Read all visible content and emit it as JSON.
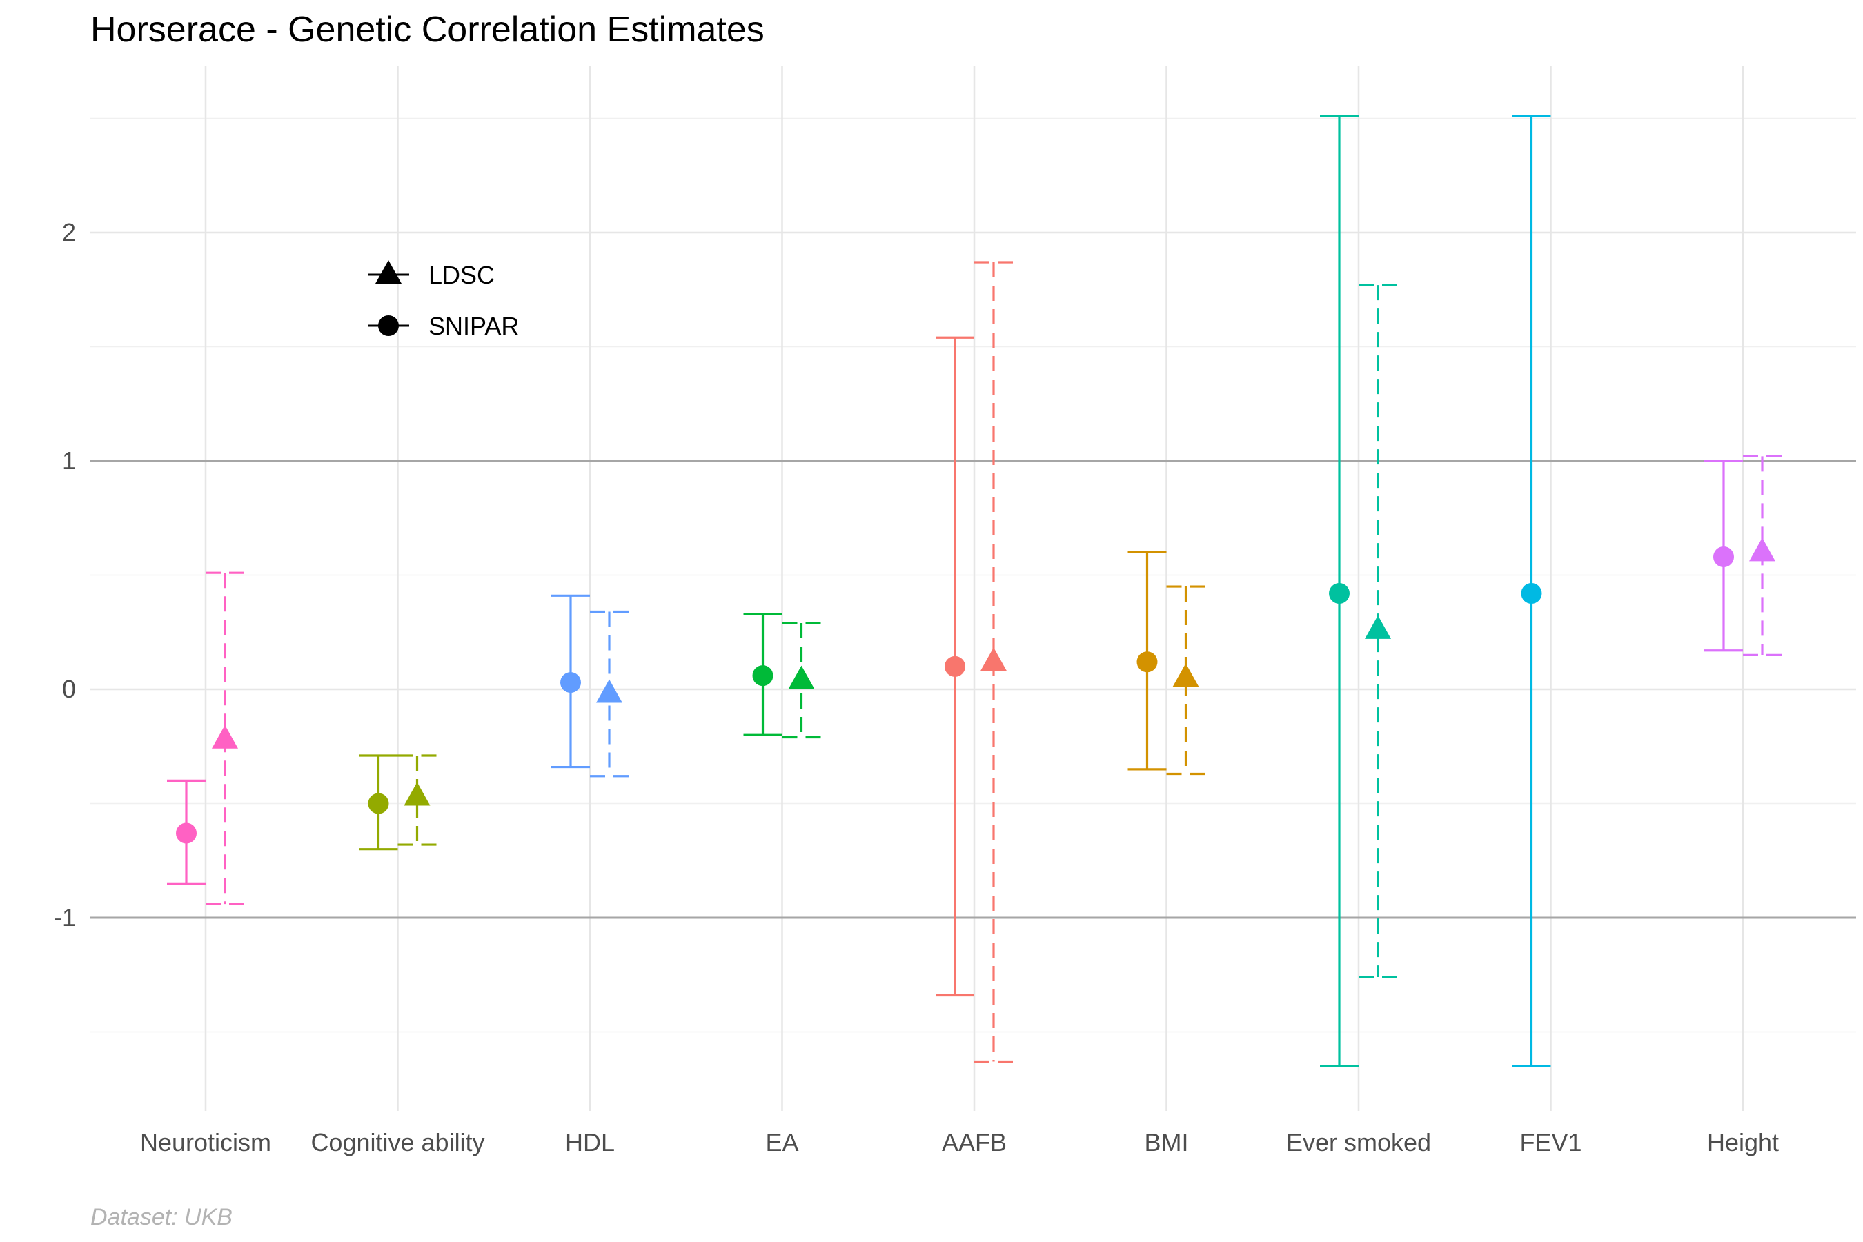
{
  "chart_data": {
    "type": "scatter",
    "title": "Horserace - Genetic Correlation Estimates",
    "caption": "Dataset: UKB",
    "xlabel": "",
    "ylabel": "",
    "categories": [
      "Neuroticism",
      "Cognitive ability",
      "HDL",
      "EA",
      "AAFB",
      "BMI",
      "Ever smoked",
      "FEV1",
      "Height"
    ],
    "colors": [
      "#FF61C3",
      "#93AA00",
      "#619CFF",
      "#00BA38",
      "#F8766D",
      "#D39200",
      "#00C19F",
      "#00B9E3",
      "#DB72FB"
    ],
    "y_ticks": [
      -1,
      0,
      1,
      2
    ],
    "y_tick_labels": [
      "-1",
      "0",
      "1",
      "2"
    ],
    "ylim": [
      -1.85,
      2.85
    ],
    "reference_lines": [
      -1,
      1
    ],
    "grid": true,
    "legend": {
      "placement": "top-left",
      "entries": [
        {
          "label": "LDSC",
          "shape": "triangle"
        },
        {
          "label": "SNIPAR",
          "shape": "circle"
        }
      ]
    },
    "series": [
      {
        "method": "SNIPAR",
        "shape": "circle",
        "line": "solid",
        "values": [
          -0.63,
          -0.5,
          0.03,
          0.06,
          0.1,
          0.12,
          0.42,
          0.42,
          0.58
        ],
        "lower": [
          -0.85,
          -0.7,
          -0.34,
          -0.2,
          -1.34,
          -0.35,
          -1.65,
          -1.65,
          0.17
        ],
        "upper": [
          -0.4,
          -0.29,
          0.41,
          0.33,
          1.54,
          0.6,
          2.51,
          2.51,
          1.0
        ]
      },
      {
        "method": "LDSC",
        "shape": "triangle",
        "line": "dashed",
        "values": [
          -0.22,
          -0.47,
          -0.02,
          0.04,
          0.12,
          0.05,
          0.26,
          null,
          0.6
        ],
        "lower": [
          -0.94,
          -0.68,
          -0.38,
          -0.21,
          -1.63,
          -0.37,
          -1.26,
          null,
          0.15
        ],
        "upper": [
          0.51,
          -0.29,
          0.34,
          0.29,
          1.87,
          0.45,
          1.77,
          null,
          1.02
        ]
      }
    ]
  }
}
